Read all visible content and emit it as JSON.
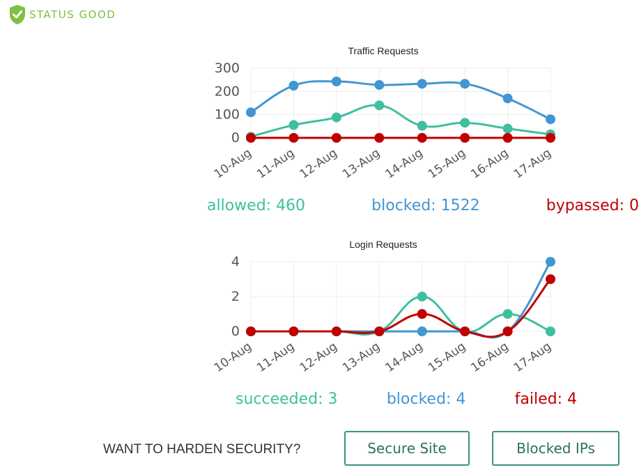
{
  "status": {
    "label": "STATUS GOOD",
    "color": "#7cc142"
  },
  "colors": {
    "allowed": "#3fbf9f",
    "blocked": "#4196d3",
    "bypassed": "#c00000"
  },
  "traffic": {
    "totals": {
      "allowed": "allowed: 460",
      "blocked": "blocked: 1522",
      "bypassed": "bypassed: 0"
    }
  },
  "login": {
    "totals": {
      "succeeded": "succeeded: 3",
      "blocked": "blocked: 4",
      "failed": "failed: 4"
    }
  },
  "harden": {
    "label": "WANT TO HARDEN SECURITY?",
    "secure_site": "Secure Site",
    "blocked_ips": "Blocked IPs"
  },
  "chart_data": [
    {
      "type": "line",
      "title": "Traffic Requests",
      "categories": [
        "10-Aug",
        "11-Aug",
        "12-Aug",
        "13-Aug",
        "14-Aug",
        "15-Aug",
        "16-Aug",
        "17-Aug"
      ],
      "yticks": [
        0,
        100,
        200,
        300
      ],
      "ylim": [
        0,
        300
      ],
      "grid": true,
      "series": [
        {
          "key": "allowed",
          "color": "#3fbf9f",
          "values": [
            5,
            55,
            88,
            140,
            52,
            65,
            40,
            15
          ]
        },
        {
          "key": "blocked",
          "color": "#4196d3",
          "values": [
            110,
            225,
            243,
            228,
            233,
            233,
            170,
            80
          ]
        },
        {
          "key": "bypassed",
          "color": "#c00000",
          "values": [
            0,
            0,
            0,
            0,
            0,
            0,
            0,
            0
          ]
        }
      ]
    },
    {
      "type": "line",
      "title": "Login Requests",
      "categories": [
        "10-Aug",
        "11-Aug",
        "12-Aug",
        "13-Aug",
        "14-Aug",
        "15-Aug",
        "16-Aug",
        "17-Aug"
      ],
      "yticks": [
        0,
        2,
        4
      ],
      "ylim": [
        0,
        4
      ],
      "grid": true,
      "series": [
        {
          "key": "succeeded",
          "color": "#3fbf9f",
          "values": [
            0,
            0,
            0,
            0,
            2,
            0,
            1,
            0
          ]
        },
        {
          "key": "blocked",
          "color": "#4196d3",
          "values": [
            0,
            0,
            0,
            0,
            0,
            0,
            0,
            4
          ]
        },
        {
          "key": "failed",
          "color": "#c00000",
          "values": [
            0,
            0,
            0,
            0,
            1,
            0,
            0,
            3
          ]
        }
      ]
    }
  ]
}
